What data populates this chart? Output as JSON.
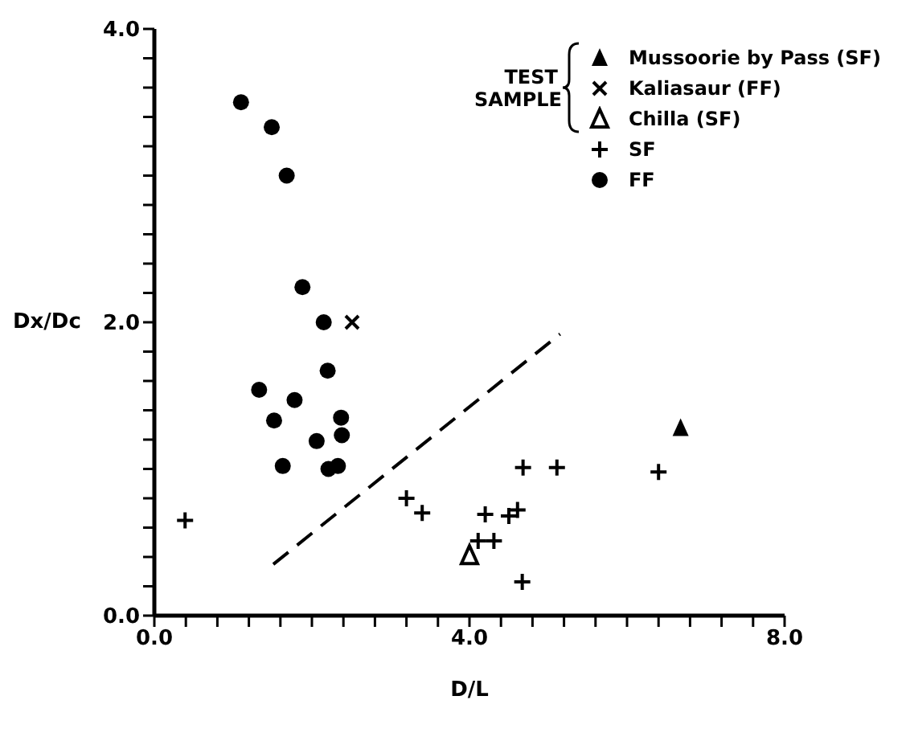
{
  "chart_data": {
    "type": "scatter",
    "xlabel": "D/L",
    "ylabel": "Dx/Dc",
    "legend_title": "TEST SAMPLE",
    "legend": "top right",
    "xlim": [
      0,
      8
    ],
    "ylim": [
      0,
      4
    ],
    "xticks": [
      {
        "value": 0,
        "label": "0.0"
      },
      {
        "value": 0.4,
        "label": null
      },
      {
        "value": 0.8,
        "label": null
      },
      {
        "value": 1.2,
        "label": null
      },
      {
        "value": 1.6,
        "label": null
      },
      {
        "value": 2,
        "label": null
      },
      {
        "value": 2.4,
        "label": null
      },
      {
        "value": 2.8,
        "label": null
      },
      {
        "value": 3.2,
        "label": null
      },
      {
        "value": 3.6,
        "label": null
      },
      {
        "value": 4,
        "label": "4.0"
      },
      {
        "value": 4.4,
        "label": null
      },
      {
        "value": 4.8,
        "label": null
      },
      {
        "value": 5.2,
        "label": null
      },
      {
        "value": 5.6,
        "label": null
      },
      {
        "value": 6,
        "label": null
      },
      {
        "value": 6.4,
        "label": null
      },
      {
        "value": 6.8,
        "label": null
      },
      {
        "value": 7.2,
        "label": null
      },
      {
        "value": 7.6,
        "label": null
      },
      {
        "value": 8,
        "label": "8.0"
      }
    ],
    "yticks": [
      {
        "value": 0,
        "label": "0.0"
      },
      {
        "value": 0.2,
        "label": null
      },
      {
        "value": 0.4,
        "label": null
      },
      {
        "value": 0.6,
        "label": null
      },
      {
        "value": 0.8,
        "label": null
      },
      {
        "value": 1,
        "label": null
      },
      {
        "value": 1.2,
        "label": null
      },
      {
        "value": 1.4,
        "label": null
      },
      {
        "value": 1.6,
        "label": null
      },
      {
        "value": 1.8,
        "label": null
      },
      {
        "value": 2,
        "label": "2.0"
      },
      {
        "value": 2.2,
        "label": null
      },
      {
        "value": 2.4,
        "label": null
      },
      {
        "value": 2.6,
        "label": null
      },
      {
        "value": 2.8,
        "label": null
      },
      {
        "value": 3,
        "label": null
      },
      {
        "value": 3.2,
        "label": null
      },
      {
        "value": 3.4,
        "label": null
      },
      {
        "value": 3.6,
        "label": null
      },
      {
        "value": 3.8,
        "label": null
      },
      {
        "value": 4,
        "label": "4.0"
      }
    ],
    "series": [
      {
        "name": "Mussoorie by Pass (SF)",
        "color": "#000000",
        "marker": "triangle",
        "x": [
          6.68
        ],
        "values": [
          1.28
        ]
      },
      {
        "name": "Kaliasaur (FF)",
        "color": "#000000",
        "marker": "cross",
        "x": [
          2.51
        ],
        "values": [
          2.0
        ]
      },
      {
        "name": "Chilla (SF)",
        "color": "#000000",
        "marker": "triangle-open",
        "x": [
          4.0
        ],
        "values": [
          0.41
        ]
      },
      {
        "name": "SF",
        "color": "#000000",
        "marker": "plus",
        "x": [
          0.39,
          3.2,
          3.4,
          4.2,
          4.5,
          4.61,
          4.68,
          5.11,
          6.4,
          4.11,
          4.31,
          4.67
        ],
        "values": [
          0.65,
          0.8,
          0.7,
          0.69,
          0.68,
          0.72,
          1.01,
          1.01,
          0.98,
          0.51,
          0.51,
          0.23
        ]
      },
      {
        "name": "FF",
        "color": "#000000",
        "marker": "circle",
        "x": [
          1.1,
          1.49,
          1.68,
          1.88,
          2.15,
          2.2,
          1.33,
          1.78,
          1.52,
          2.37,
          2.38,
          2.06,
          1.63,
          2.21,
          2.33
        ],
        "values": [
          3.5,
          3.33,
          3.0,
          2.24,
          2.0,
          1.67,
          1.54,
          1.47,
          1.33,
          1.35,
          1.23,
          1.19,
          1.02,
          1.0,
          1.02
        ]
      },
      {
        "type": "line",
        "color": "#000000",
        "line_style": "dashed",
        "marker": "none",
        "x": [
          1.51,
          5.15
        ],
        "values": [
          0.35,
          1.92
        ]
      }
    ]
  }
}
